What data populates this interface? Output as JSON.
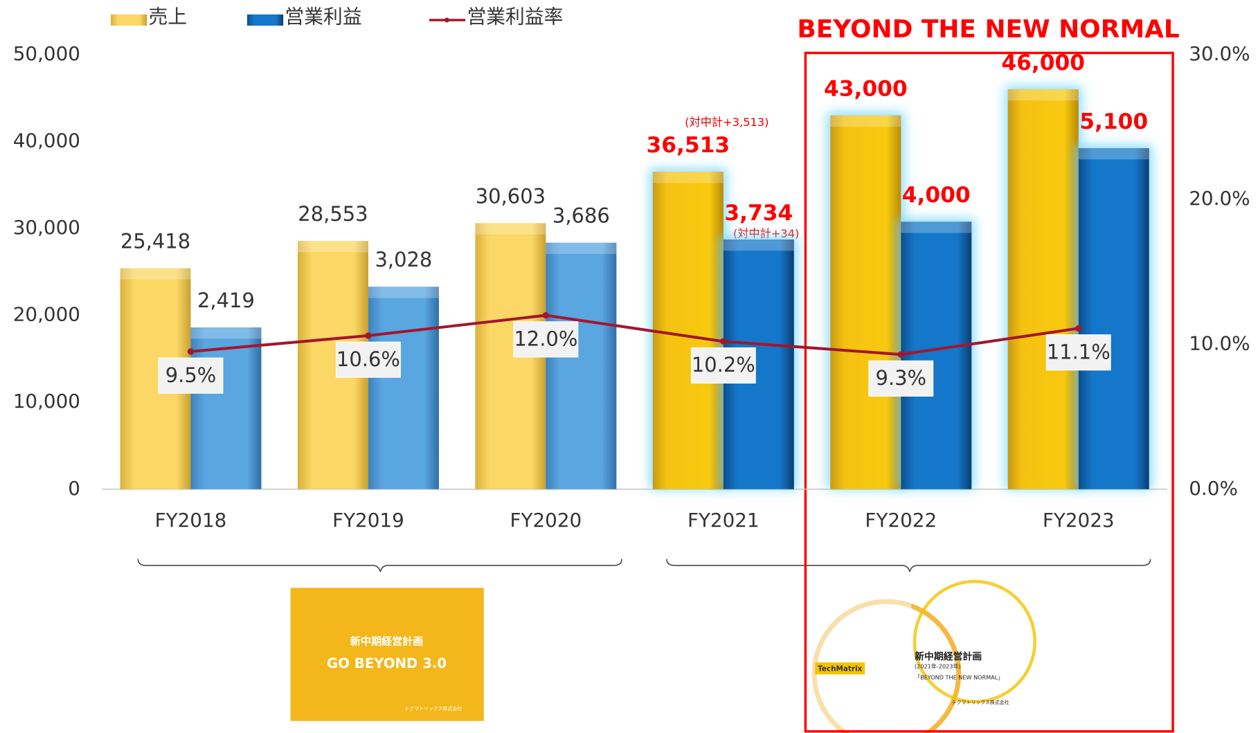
{
  "chart_data": {
    "type": "bar",
    "title": "BEYOND THE NEW NORMAL",
    "categories": [
      "FY2018",
      "FY2019",
      "FY2020",
      "FY2021",
      "FY2022",
      "FY2023"
    ],
    "series": [
      {
        "name": "売上",
        "color": "#f5c211",
        "values": [
          25418,
          28553,
          30603,
          36513,
          43000,
          46000
        ],
        "value_labels": [
          "25,418",
          "28,553",
          "30,603",
          "36,513",
          "43,000",
          "46,000"
        ]
      },
      {
        "name": "営業利益",
        "color": "#1577c9",
        "axis": "y3",
        "values": [
          2419,
          3028,
          3686,
          3734,
          4000,
          5100
        ],
        "value_labels": [
          "2,419",
          "3,028",
          "3,686",
          "3,734",
          "4,000",
          "5,100"
        ]
      },
      {
        "name": "営業利益率",
        "color": "#a3162d",
        "type": "line",
        "axis": "y2",
        "values": [
          9.5,
          10.6,
          12.0,
          10.2,
          9.3,
          11.1
        ],
        "value_labels": [
          "9.5%",
          "10.6%",
          "12.0%",
          "10.2%",
          "9.3%",
          "11.1%"
        ]
      }
    ],
    "ylim": [
      0,
      50000
    ],
    "yticks": [
      0,
      {
        "value": 10000,
        "label": "10,000"
      },
      {
        "value": 20000,
        "label": "20,000"
      },
      {
        "value": 30000,
        "label": "30,000"
      },
      {
        "value": 40000,
        "label": "40,000"
      },
      {
        "value": 50000,
        "label": "50,000"
      }
    ],
    "y2lim": [
      0,
      30
    ],
    "y2ticks": [
      {
        "value": 0,
        "label": "0.0%"
      },
      {
        "value": 10,
        "label": "10.0%"
      },
      {
        "value": 20,
        "label": "20.0%"
      },
      {
        "value": 30,
        "label": "30.0%"
      }
    ],
    "y3lim": [
      0,
      6500
    ],
    "annotations": [
      "(対中計+3,513)",
      "(対中計+34)"
    ],
    "plans": [
      {
        "title": "新中期経営計画",
        "name": "GO BEYOND 3.0",
        "company": "テクマトリックス株式会社"
      },
      {
        "title": "新中期経営計画",
        "period": "(2021年-2023年)",
        "name": "「BEYOND THE NEW NORMAL」",
        "logo": "TechMatrix",
        "company": "テクマトリックス株式会社"
      }
    ]
  }
}
